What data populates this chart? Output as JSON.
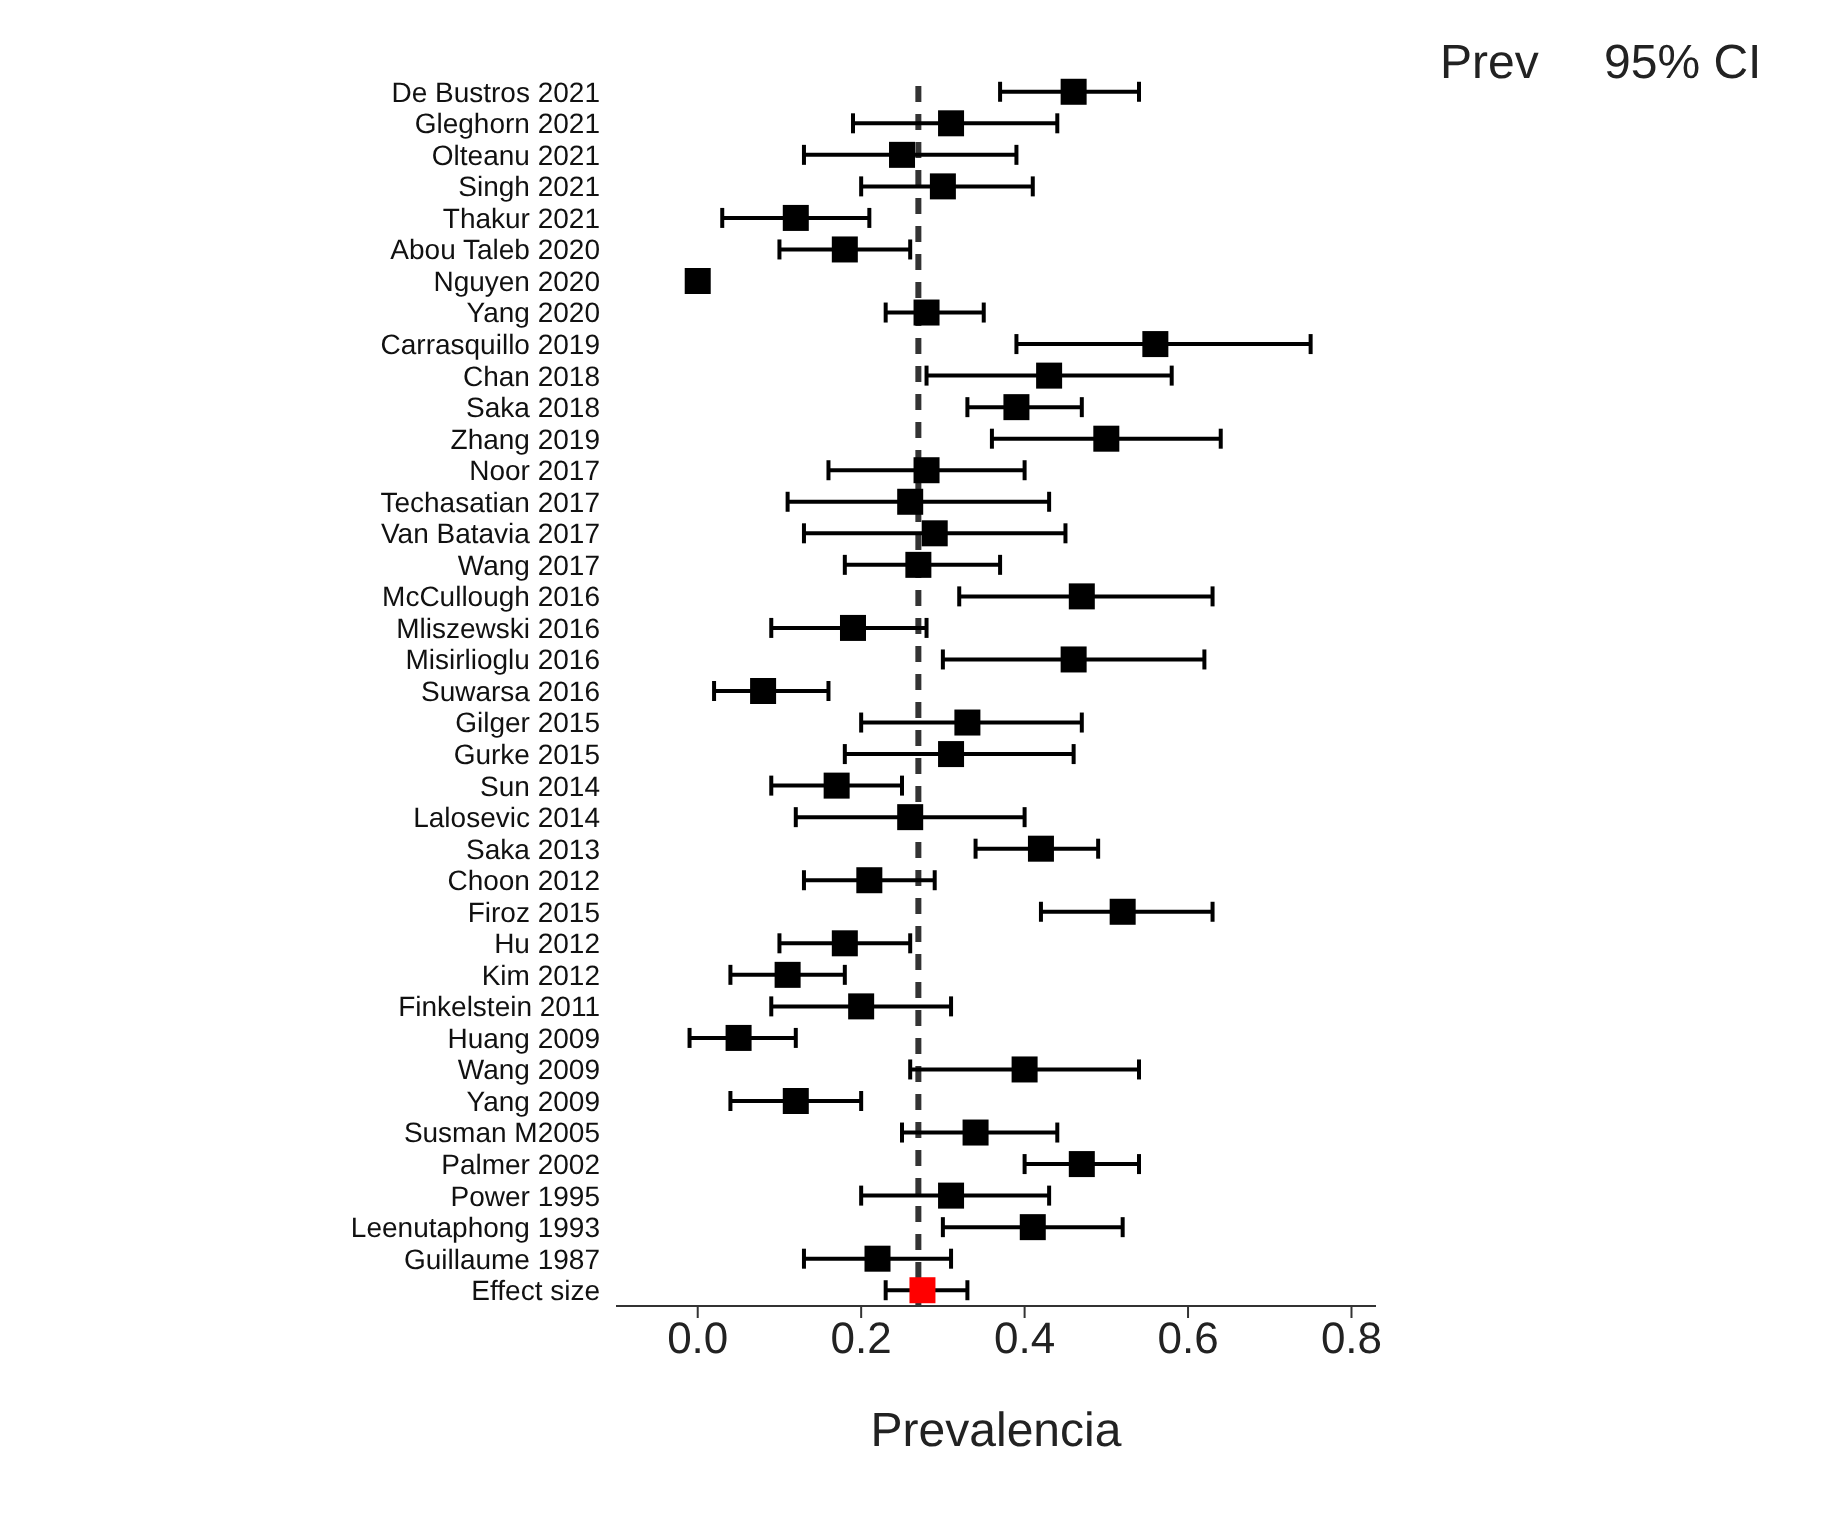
{
  "chart_data": {
    "type": "scatter",
    "orientation": "horizontal",
    "xlabel": "Prevalencia",
    "marker": "square",
    "grid": false,
    "categories": [
      "De Bustros 2021",
      "Gleghorn 2021",
      "Olteanu 2021",
      "Singh 2021",
      "Thakur 2021",
      "Abou Taleb 2020",
      "Nguyen 2020",
      "Yang 2020",
      "Carrasquillo 2019",
      "Chan 2018",
      "Saka 2018",
      "Zhang 2019",
      "Noor 2017",
      "Techasatian 2017",
      "Van Batavia 2017",
      "Wang 2017",
      "McCullough 2016",
      "Mliszewski 2016",
      "Misirlioglu 2016",
      "Suwarsa 2016",
      "Gilger 2015",
      "Gurke 2015",
      "Sun 2014",
      "Lalosevic 2014",
      "Saka 2013",
      "Choon 2012",
      "Firoz 2015",
      "Hu 2012",
      "Kim 2012",
      "Finkelstein 2011",
      "Huang 2009",
      "Wang 2009",
      "Yang 2009",
      "Susman M2005",
      "Palmer 2002",
      "Power 1995",
      "Leenutaphong 1993",
      "Guillaume 1987",
      "Effect size"
    ],
    "values": [
      0.46,
      0.31,
      0.25,
      0.3,
      0.12,
      0.18,
      0.0,
      0.28,
      0.56,
      0.43,
      0.39,
      0.5,
      0.28,
      0.26,
      0.29,
      0.27,
      0.47,
      0.19,
      0.46,
      0.08,
      0.33,
      0.31,
      0.17,
      0.26,
      0.42,
      0.21,
      0.52,
      0.18,
      0.11,
      0.2,
      0.05,
      0.4,
      0.12,
      0.34,
      0.47,
      0.31,
      0.41,
      0.22,
      0.275
    ],
    "errors": [
      [
        0.37,
        0.54
      ],
      [
        0.19,
        0.44
      ],
      [
        0.13,
        0.39
      ],
      [
        0.2,
        0.41
      ],
      [
        0.03,
        0.21
      ],
      [
        0.1,
        0.26
      ],
      null,
      [
        0.23,
        0.35
      ],
      [
        0.39,
        0.75
      ],
      [
        0.28,
        0.58
      ],
      [
        0.33,
        0.47
      ],
      [
        0.36,
        0.64
      ],
      [
        0.16,
        0.4
      ],
      [
        0.11,
        0.43
      ],
      [
        0.13,
        0.45
      ],
      [
        0.18,
        0.37
      ],
      [
        0.32,
        0.63
      ],
      [
        0.09,
        0.28
      ],
      [
        0.3,
        0.62
      ],
      [
        0.02,
        0.16
      ],
      [
        0.2,
        0.47
      ],
      [
        0.18,
        0.46
      ],
      [
        0.09,
        0.25
      ],
      [
        0.12,
        0.4
      ],
      [
        0.34,
        0.49
      ],
      [
        0.13,
        0.29
      ],
      [
        0.42,
        0.63
      ],
      [
        0.1,
        0.26
      ],
      [
        0.04,
        0.18
      ],
      [
        0.09,
        0.31
      ],
      [
        -0.01,
        0.12
      ],
      [
        0.26,
        0.54
      ],
      [
        0.04,
        0.2
      ],
      [
        0.25,
        0.44
      ],
      [
        0.4,
        0.54
      ],
      [
        0.2,
        0.43
      ],
      [
        0.3,
        0.52
      ],
      [
        0.13,
        0.31
      ],
      [
        0.23,
        0.33
      ]
    ],
    "colors": [
      "#000000",
      "#000000",
      "#000000",
      "#000000",
      "#000000",
      "#000000",
      "#000000",
      "#000000",
      "#000000",
      "#000000",
      "#000000",
      "#000000",
      "#000000",
      "#000000",
      "#000000",
      "#000000",
      "#000000",
      "#000000",
      "#000000",
      "#000000",
      "#000000",
      "#000000",
      "#000000",
      "#000000",
      "#000000",
      "#000000",
      "#000000",
      "#000000",
      "#000000",
      "#000000",
      "#000000",
      "#000000",
      "#000000",
      "#000000",
      "#000000",
      "#000000",
      "#000000",
      "#000000",
      "#ff0000"
    ],
    "xlim": [
      -0.1,
      0.83
    ],
    "xticks": [
      {
        "value": 0,
        "label": "0.0"
      },
      {
        "value": 0.2,
        "label": "0.2"
      },
      {
        "value": 0.4,
        "label": "0.4"
      },
      {
        "value": 0.6,
        "label": "0.6"
      },
      {
        "value": 0.8,
        "label": "0.8"
      }
    ],
    "ref_lines": [
      {
        "axis": "x",
        "value": 0.27,
        "line_style": "dashed"
      }
    ],
    "annotations": [
      "Prev",
      "95% CI"
    ]
  }
}
